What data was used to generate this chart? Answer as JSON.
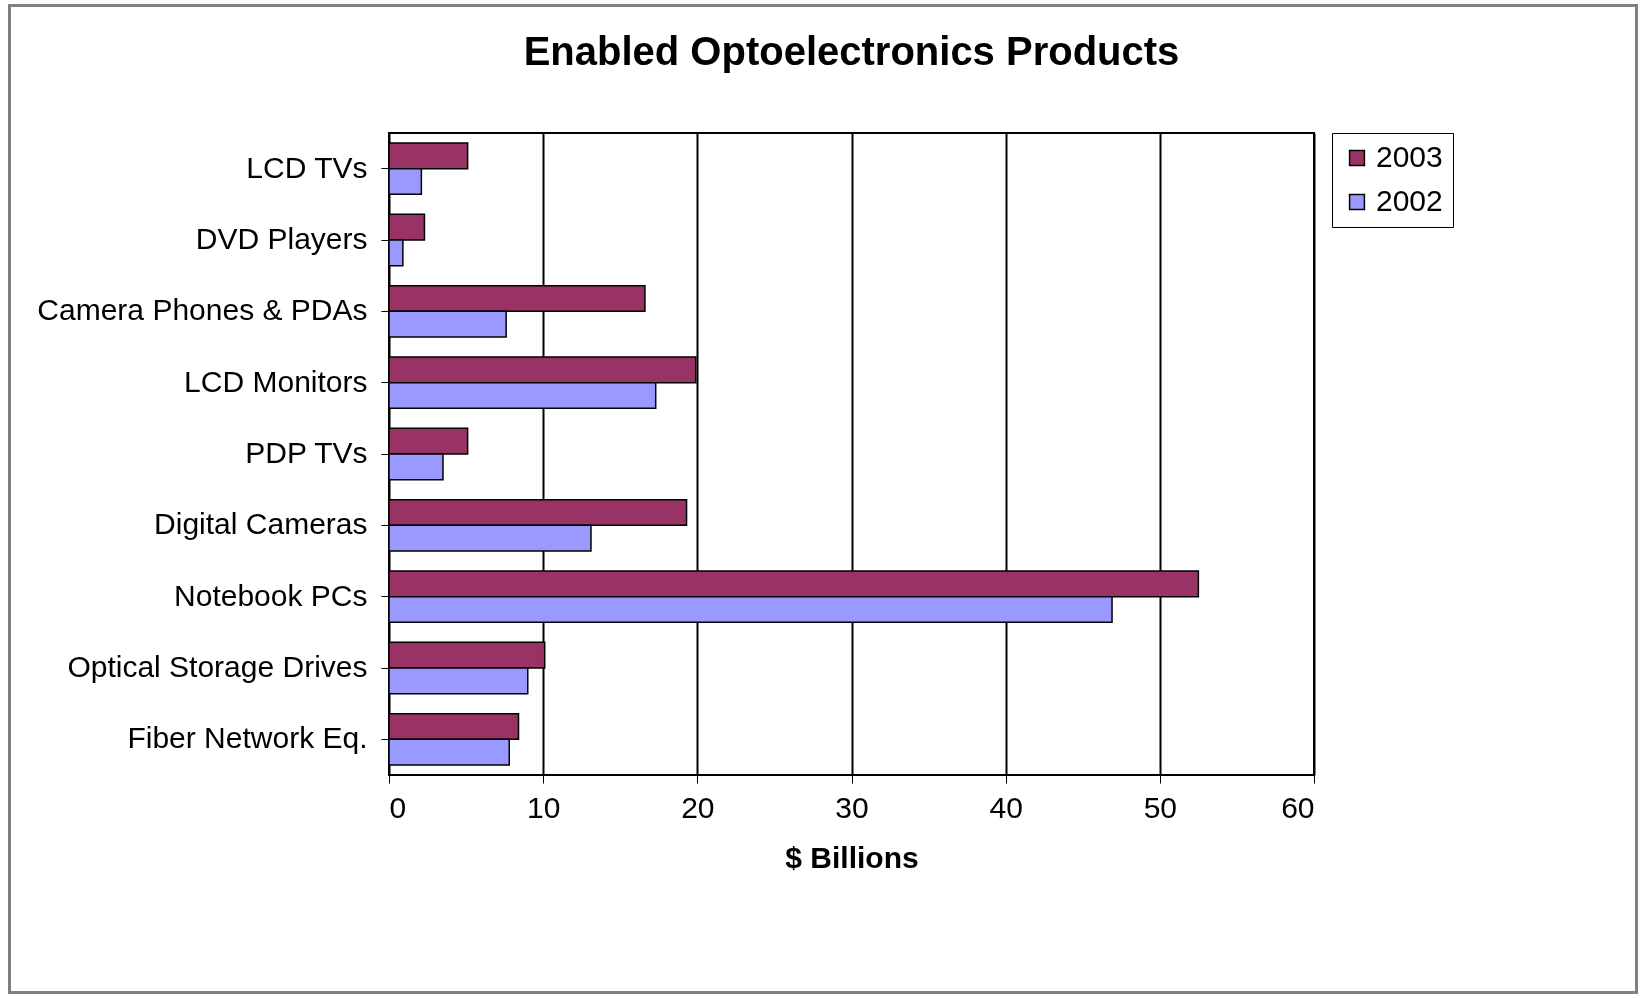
{
  "chart_data": {
    "type": "bar",
    "orientation": "horizontal",
    "title": "Enabled Optoelectronics Products",
    "xlabel": "$ Billions",
    "categories": [
      "LCD TVs",
      "DVD Players",
      "Camera Phones & PDAs",
      "LCD Monitors",
      "PDP TVs",
      "Digital Cameras",
      "Notebook PCs",
      "Optical Storage Drives",
      "Fiber Network Eq."
    ],
    "series": [
      {
        "name": "2003",
        "color": "#993366",
        "values": [
          5.1,
          2.3,
          16.6,
          19.9,
          5.1,
          19.3,
          52.5,
          10.1,
          8.4
        ]
      },
      {
        "name": "2002",
        "color": "#9999ff",
        "values": [
          2.1,
          0.9,
          7.6,
          17.3,
          3.5,
          13.1,
          46.9,
          9.0,
          7.8
        ]
      }
    ],
    "xlim": [
      0,
      60
    ],
    "xticks": [
      0,
      10,
      20,
      30,
      40,
      50,
      60
    ],
    "grid": "x",
    "legend": "right"
  }
}
